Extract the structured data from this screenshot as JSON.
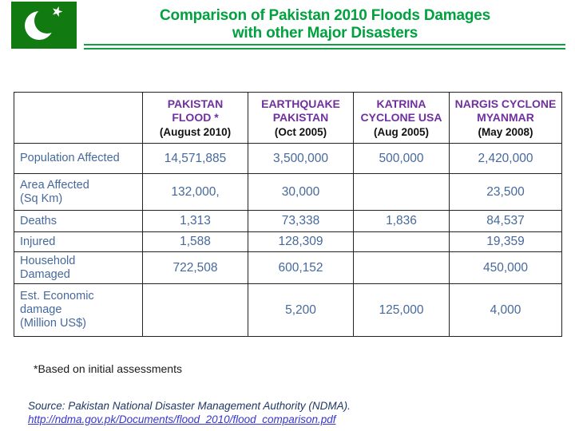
{
  "header": {
    "title_line1": "Comparison of Pakistan 2010 Floods Damages",
    "title_line2": "with other Major Disasters"
  },
  "table": {
    "columns": [
      {
        "name": "",
        "date": ""
      },
      {
        "name": "PAKISTAN\nFLOOD *",
        "date": "(August 2010)"
      },
      {
        "name": "EARTHQUAKE\nPAKISTAN",
        "date": "(Oct 2005)"
      },
      {
        "name": "KATRINA\nCYCLONE USA",
        "date": "(Aug 2005)"
      },
      {
        "name": "NARGIS CYCLONE\nMYANMAR",
        "date": "(May 2008)"
      }
    ],
    "rows": [
      {
        "label": "Population Affected",
        "values": [
          "14,571,885",
          "3,500,000",
          "500,000",
          "2,420,000"
        ]
      },
      {
        "label": "Area Affected\n(Sq Km)",
        "values": [
          "132,000,",
          "30,000",
          "",
          "23,500"
        ]
      },
      {
        "label": "Deaths",
        "values": [
          "1,313",
          "73,338",
          "1,836",
          "84,537"
        ]
      },
      {
        "label": "Injured",
        "values": [
          "1,588",
          "128,309",
          "",
          "19,359"
        ]
      },
      {
        "label": "Household\nDamaged",
        "values": [
          "722,508",
          "600,152",
          "",
          "450,000"
        ]
      },
      {
        "label": "Est. Economic\ndamage\n(Million US$)",
        "values": [
          "",
          "5,200",
          "125,000",
          "4,000"
        ]
      }
    ]
  },
  "footnote": "*Based on initial assessments",
  "source": {
    "text": "Source: Pakistan National Disaster Management Authority (NDMA).",
    "url": "http://ndma.gov.pk/Documents/flood_2010/flood_comparison.pdf"
  },
  "icons": {
    "flag": "pakistan-flag",
    "star": "★"
  },
  "colors": {
    "title_green": "#00A13E",
    "flag_green": "#117A11",
    "header_purple": "#7030A0",
    "table_text_blue": "#46699C",
    "source_navy": "#1F3864",
    "link_blue": "#3636CC"
  }
}
